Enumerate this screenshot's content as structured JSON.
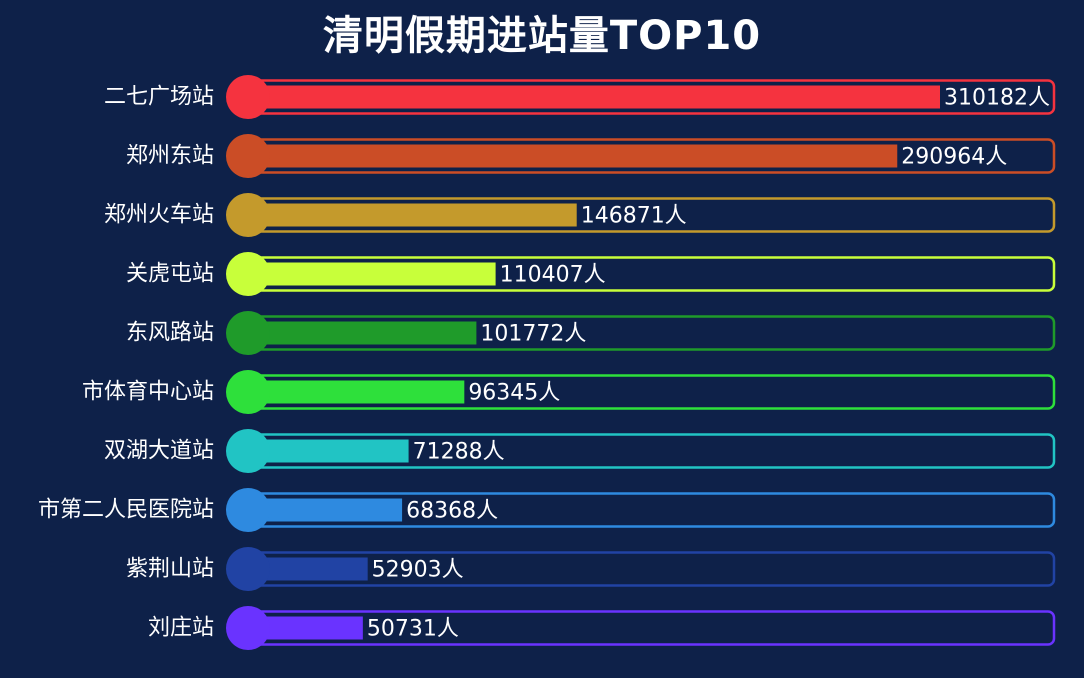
{
  "chart_data": {
    "type": "bar",
    "orientation": "horizontal",
    "title": "清明假期进站量TOP10",
    "unit": "人",
    "xlim": [
      0,
      310182
    ],
    "categories": [
      "二七广场站",
      "郑州东站",
      "郑州火车站",
      "关虎屯站",
      "东风路站",
      "市体育中心站",
      "双湖大道站",
      "市第二人民医院站",
      "紫荆山站",
      "刘庄站"
    ],
    "values": [
      310182,
      290964,
      146871,
      110407,
      101772,
      96345,
      71288,
      68368,
      52903,
      50731
    ],
    "colors": [
      "#f5333f",
      "#cb4d26",
      "#c49a2c",
      "#c8ff3a",
      "#1f9b2a",
      "#2ee03b",
      "#21c4c4",
      "#2e8ae0",
      "#2143a4",
      "#6a33ff"
    ],
    "background": "#0e2149",
    "grid": false,
    "legend": "none"
  }
}
